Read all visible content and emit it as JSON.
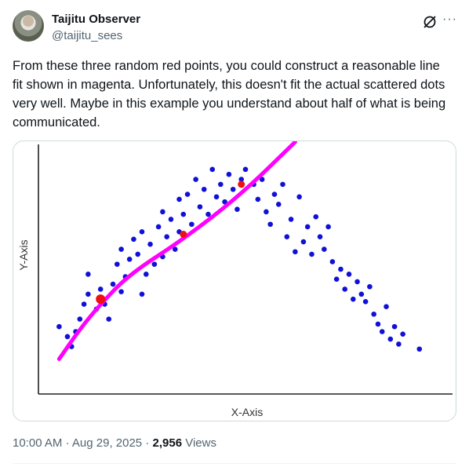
{
  "tweet": {
    "author_name": "Taijitu Observer",
    "author_handle": "@taijitu_sees",
    "text": "From these three random red points, you could construct a reasonable line fit shown in magenta. Unfortunately, this doesn't fit the actual scattered dots very well. Maybe in this example you understand about half of what is being communicated.",
    "time": "10:00 AM",
    "separator": "·",
    "date": "Aug 29, 2025",
    "views_count": "2,956",
    "views_label": "Views",
    "more_label": "···"
  },
  "icons": {
    "grok": "grok-icon",
    "more": "more-icon"
  },
  "colors": {
    "dots": "#1010d8",
    "fit_line": "#ff00ff",
    "red_points": "#ee1111",
    "axis": "#222222"
  },
  "chart_data": {
    "type": "scatter",
    "xlabel": "X-Axis",
    "ylabel": "Y-Axis",
    "xlim": [
      0,
      100
    ],
    "ylim": [
      0,
      100
    ],
    "series": [
      {
        "role": "blue-dots",
        "points": [
          [
            5,
            27
          ],
          [
            7,
            23
          ],
          [
            8,
            19
          ],
          [
            9,
            25
          ],
          [
            10,
            30
          ],
          [
            11,
            36
          ],
          [
            12,
            40
          ],
          [
            12,
            48
          ],
          [
            14,
            34
          ],
          [
            15,
            42
          ],
          [
            16,
            36
          ],
          [
            17,
            30
          ],
          [
            18,
            44
          ],
          [
            19,
            52
          ],
          [
            20,
            58
          ],
          [
            20,
            41
          ],
          [
            21,
            47
          ],
          [
            22,
            54
          ],
          [
            23,
            62
          ],
          [
            24,
            56
          ],
          [
            25,
            65
          ],
          [
            25,
            40
          ],
          [
            26,
            48
          ],
          [
            27,
            60
          ],
          [
            28,
            52
          ],
          [
            29,
            67
          ],
          [
            30,
            73
          ],
          [
            30,
            55
          ],
          [
            31,
            63
          ],
          [
            32,
            70
          ],
          [
            33,
            58
          ],
          [
            34,
            78
          ],
          [
            34,
            65
          ],
          [
            35,
            72
          ],
          [
            36,
            80
          ],
          [
            37,
            68
          ],
          [
            38,
            86
          ],
          [
            39,
            75
          ],
          [
            40,
            82
          ],
          [
            41,
            72
          ],
          [
            42,
            90
          ],
          [
            43,
            79
          ],
          [
            44,
            84
          ],
          [
            45,
            77
          ],
          [
            46,
            88
          ],
          [
            47,
            82
          ],
          [
            48,
            74
          ],
          [
            49,
            86
          ],
          [
            50,
            90
          ],
          [
            52,
            84
          ],
          [
            53,
            78
          ],
          [
            54,
            86
          ],
          [
            55,
            73
          ],
          [
            56,
            68
          ],
          [
            57,
            80
          ],
          [
            58,
            76
          ],
          [
            59,
            84
          ],
          [
            60,
            63
          ],
          [
            61,
            70
          ],
          [
            62,
            57
          ],
          [
            63,
            79
          ],
          [
            64,
            61
          ],
          [
            65,
            67
          ],
          [
            66,
            56
          ],
          [
            67,
            71
          ],
          [
            68,
            63
          ],
          [
            69,
            58
          ],
          [
            70,
            67
          ],
          [
            71,
            53
          ],
          [
            72,
            46
          ],
          [
            73,
            50
          ],
          [
            74,
            42
          ],
          [
            75,
            48
          ],
          [
            76,
            38
          ],
          [
            77,
            45
          ],
          [
            78,
            40
          ],
          [
            79,
            37
          ],
          [
            80,
            43
          ],
          [
            81,
            32
          ],
          [
            82,
            28
          ],
          [
            83,
            25
          ],
          [
            84,
            35
          ],
          [
            85,
            22
          ],
          [
            86,
            27
          ],
          [
            87,
            20
          ],
          [
            88,
            24
          ],
          [
            92,
            18
          ]
        ]
      },
      {
        "role": "red-points",
        "points": [
          [
            15,
            38
          ],
          [
            35,
            64
          ],
          [
            49,
            84
          ]
        ]
      },
      {
        "role": "magenta-fit",
        "type": "line",
        "points": [
          [
            5,
            14
          ],
          [
            10,
            26
          ],
          [
            15,
            36
          ],
          [
            22,
            48
          ],
          [
            35,
            62
          ],
          [
            49,
            80
          ],
          [
            62,
            101
          ]
        ]
      }
    ]
  }
}
